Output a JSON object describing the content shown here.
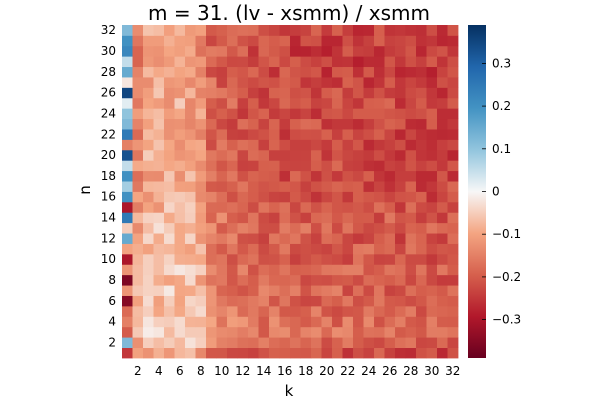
{
  "chart_data": {
    "type": "heatmap",
    "title": "m = 31. (lv - xsmm) / xsmm",
    "xlabel": "k",
    "ylabel": "n",
    "x_range": [
      1,
      32
    ],
    "y_range": [
      1,
      32
    ],
    "x_ticks": [
      "2",
      "4",
      "6",
      "8",
      "10",
      "12",
      "14",
      "16",
      "18",
      "20",
      "22",
      "24",
      "26",
      "28",
      "30",
      "32"
    ],
    "y_ticks": [
      "2",
      "4",
      "6",
      "8",
      "10",
      "12",
      "14",
      "16",
      "18",
      "20",
      "22",
      "24",
      "26",
      "28",
      "30",
      "32"
    ],
    "colorbar": {
      "range": [
        -0.39,
        0.39
      ],
      "ticks": [
        0.3,
        0.2,
        0.1,
        0,
        -0.1,
        -0.2,
        -0.3
      ],
      "tick_labels": [
        "0.3",
        "0.2",
        "0.1",
        "0",
        "−0.1",
        "−0.2",
        "−0.3"
      ],
      "colors": [
        "#67001f",
        "#b2182b",
        "#d6604d",
        "#f4a582",
        "#f7f7f7",
        "#92c5de",
        "#4393c3",
        "#2166ac",
        "#053061"
      ]
    },
    "column_profile": [
      0.0,
      -0.1,
      -0.02,
      -0.03,
      -0.02,
      -0.02,
      -0.04,
      -0.07,
      -0.12,
      -0.14,
      -0.16,
      -0.17,
      -0.18,
      -0.19,
      -0.19,
      -0.2,
      -0.2,
      -0.2,
      -0.2,
      -0.21,
      -0.21,
      -0.21,
      -0.21,
      -0.21,
      -0.21,
      -0.21,
      -0.22,
      -0.22,
      -0.22,
      -0.22,
      -0.22,
      -0.22
    ],
    "row_profile": [
      -0.17,
      -0.08,
      -0.06,
      -0.07,
      -0.09,
      -0.12,
      -0.1,
      -0.12,
      -0.1,
      -0.14,
      -0.12,
      -0.13,
      -0.12,
      -0.13,
      -0.14,
      -0.16,
      -0.17,
      -0.18,
      -0.17,
      -0.18,
      -0.19,
      -0.2,
      -0.18,
      -0.19,
      -0.18,
      -0.18,
      -0.19,
      -0.2,
      -0.21,
      -0.21,
      -0.2,
      -0.2
    ],
    "first_column": [
      -0.25,
      0.12,
      -0.2,
      -0.15,
      -0.18,
      -0.35,
      -0.12,
      -0.36,
      -0.12,
      -0.3,
      -0.1,
      0.15,
      -0.05,
      0.25,
      -0.3,
      0.2,
      0.08,
      0.2,
      0.05,
      0.33,
      -0.15,
      0.25,
      0.12,
      0.1,
      0.02,
      0.35,
      -0.02,
      0.15,
      0.05,
      0.22,
      0.2,
      0.12
    ]
  }
}
